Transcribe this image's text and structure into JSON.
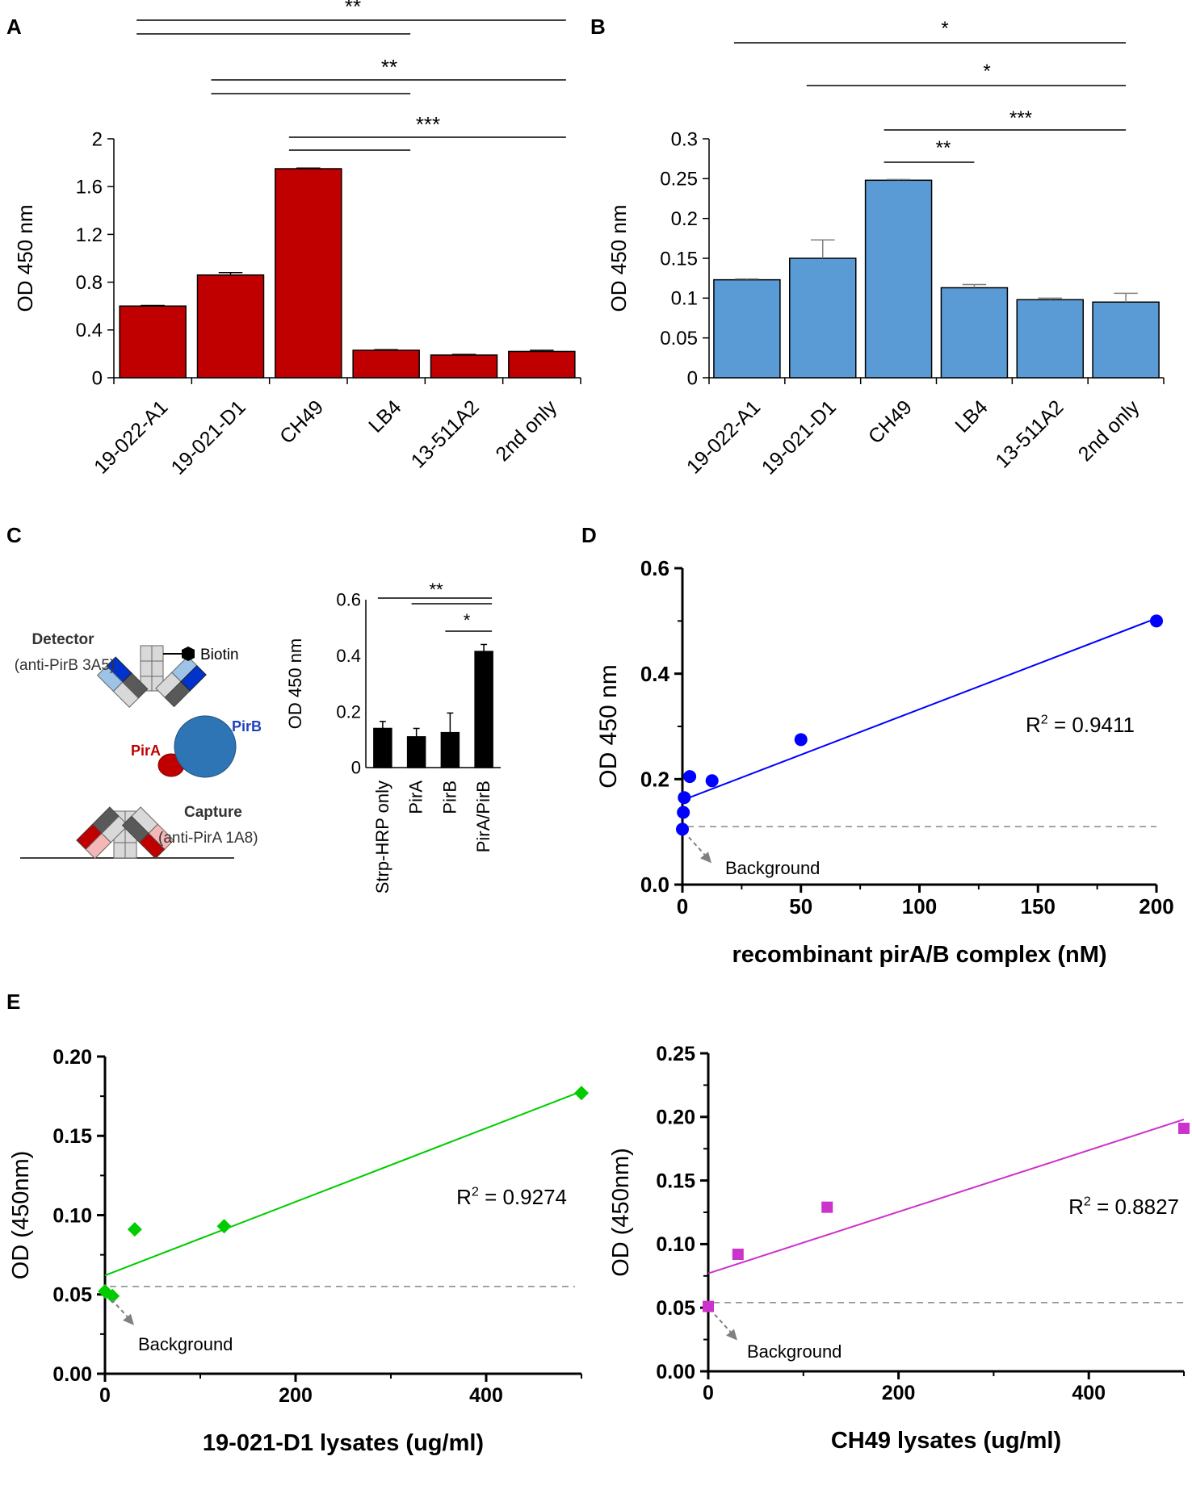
{
  "panels": {
    "A": "A",
    "B": "B",
    "C": "C",
    "D": "D",
    "E": "E"
  },
  "colors": {
    "red": "#c00000",
    "blue": "#5b9bd5",
    "black": "#000000",
    "line_blue": "#0000ff",
    "green": "#00cc00",
    "magenta": "#cc33cc",
    "gray": "#808080"
  },
  "chart_data": [
    {
      "id": "A",
      "type": "bar",
      "categories": [
        "19-022-A1",
        "19-021-D1",
        "CH49",
        "LB4",
        "13-511A2",
        "2nd only"
      ],
      "values": [
        0.6,
        0.86,
        1.75,
        0.23,
        0.19,
        0.22
      ],
      "errors": [
        0.005,
        0.02,
        0.005,
        0.005,
        0.005,
        0.01
      ],
      "ylabel": "OD 450 nm",
      "ylim": [
        0,
        2
      ],
      "yticks": [
        0,
        0.4,
        0.8,
        1.2,
        1.6,
        2
      ],
      "ytick_labels": [
        "0",
        "0.4",
        "0.8",
        "1.2",
        "1.6",
        "2"
      ],
      "significance": [
        {
          "label": "**",
          "lines": [
            [
              0,
              5
            ],
            [
              0,
              3
            ]
          ]
        },
        {
          "label": "**",
          "lines": [
            [
              1,
              5
            ],
            [
              1,
              3
            ]
          ]
        },
        {
          "label": "***",
          "lines": [
            [
              2,
              5
            ],
            [
              2,
              3
            ]
          ]
        }
      ]
    },
    {
      "id": "B",
      "type": "bar",
      "categories": [
        "19-022-A1",
        "19-021-D1",
        "CH49",
        "LB4",
        "13-511A2",
        "2nd only"
      ],
      "values": [
        0.123,
        0.15,
        0.248,
        0.113,
        0.098,
        0.095
      ],
      "errors": [
        0.001,
        0.023,
        0.001,
        0.004,
        0.002,
        0.011
      ],
      "ylabel": "OD 450 nm",
      "ylim": [
        0,
        0.3
      ],
      "yticks": [
        0,
        0.05,
        0.1,
        0.15,
        0.2,
        0.25,
        0.3
      ],
      "ytick_labels": [
        "0",
        "0.05",
        "0.1",
        "0.15",
        "0.2",
        "0.25",
        "0.3"
      ],
      "significance": [
        {
          "label": "*",
          "lines": [
            [
              0,
              5
            ]
          ]
        },
        {
          "label": "*",
          "lines": [
            [
              1,
              5
            ]
          ]
        },
        {
          "label": "***",
          "lines": [
            [
              2,
              5
            ]
          ]
        },
        {
          "label": "**",
          "lines": [
            [
              2,
              3
            ]
          ]
        }
      ]
    },
    {
      "id": "C",
      "type": "bar",
      "categories": [
        "Strp-HRP only",
        "PirA",
        "PirB",
        "PirA/PirB"
      ],
      "values": [
        0.14,
        0.11,
        0.125,
        0.415
      ],
      "errors": [
        0.025,
        0.03,
        0.07,
        0.025
      ],
      "ylabel": "OD 450 nm",
      "ylim": [
        0,
        0.6
      ],
      "yticks": [
        0,
        0.2,
        0.4,
        0.6
      ],
      "ytick_labels": [
        "0",
        "0.2",
        "0.4",
        "0.6"
      ],
      "significance": [
        {
          "label": "**",
          "lines": [
            [
              0,
              3
            ],
            [
              1,
              3
            ]
          ]
        },
        {
          "label": "*",
          "lines": [
            [
              2,
              3
            ]
          ]
        }
      ]
    },
    {
      "id": "D",
      "type": "scatter",
      "x": [
        0,
        0.39,
        0.78,
        3.1,
        12.5,
        50,
        200
      ],
      "y": [
        0.105,
        0.137,
        0.165,
        0.205,
        0.197,
        0.275,
        0.5
      ],
      "fit": [
        [
          0,
          0.16
        ],
        [
          200,
          0.505
        ]
      ],
      "r2": "R2 = 0.9411",
      "background": 0.11,
      "background_label": "Background",
      "xlabel": "recombinant pirA/B complex (nM)",
      "ylabel": "OD 450 nm",
      "xlim": [
        0,
        200
      ],
      "ylim": [
        0,
        0.6
      ],
      "xticks": [
        0,
        50,
        100,
        150,
        200
      ],
      "xtick_labels": [
        "0",
        "50",
        "100",
        "150",
        "200"
      ],
      "yticks": [
        0,
        0.2,
        0.4,
        0.6
      ],
      "ytick_labels": [
        "0.0",
        "0.2",
        "0.4",
        "0.6"
      ]
    },
    {
      "id": "E1",
      "type": "scatter",
      "x": [
        0,
        7.8,
        31.25,
        125,
        500
      ],
      "y": [
        0.052,
        0.049,
        0.091,
        0.093,
        0.177
      ],
      "fit": [
        [
          0,
          0.062
        ],
        [
          500,
          0.178
        ]
      ],
      "r2": "R2 = 0.9274",
      "background": 0.055,
      "background_label": "Background",
      "xlabel": "19-021-D1 lysates (ug/ml)",
      "ylabel": "OD (450nm)",
      "xlim": [
        0,
        500
      ],
      "ylim": [
        0,
        0.2
      ],
      "xticks": [
        0,
        200,
        400
      ],
      "xtick_labels": [
        "0",
        "200",
        "400"
      ],
      "yticks": [
        0,
        0.05,
        0.1,
        0.15,
        0.2
      ],
      "ytick_labels": [
        "0.00",
        "0.05",
        "0.10",
        "0.15",
        "0.20"
      ]
    },
    {
      "id": "E2",
      "type": "scatter",
      "x": [
        0,
        31.25,
        125,
        500
      ],
      "y": [
        0.051,
        0.092,
        0.129,
        0.191
      ],
      "fit": [
        [
          0,
          0.077
        ],
        [
          500,
          0.198
        ]
      ],
      "r2": "R2 = 0.8827",
      "background": 0.054,
      "background_label": "Background",
      "xlabel": "CH49 lysates (ug/ml)",
      "ylabel": "OD (450nm)",
      "xlim": [
        0,
        500
      ],
      "ylim": [
        0,
        0.25
      ],
      "xticks": [
        0,
        200,
        400
      ],
      "xtick_labels": [
        "0",
        "200",
        "400"
      ],
      "yticks": [
        0,
        0.05,
        0.1,
        0.15,
        0.2,
        0.25
      ],
      "ytick_labels": [
        "0.00",
        "0.05",
        "0.10",
        "0.15",
        "0.20",
        "0.25"
      ]
    }
  ],
  "schematic": {
    "detector": "Detector",
    "detector_sub": "(anti-PirB 3A5)",
    "biotin": "Biotin",
    "pirb": "PirB",
    "pira": "PirA",
    "capture": "Capture",
    "capture_sub": "(anti-PirA 1A8)"
  }
}
